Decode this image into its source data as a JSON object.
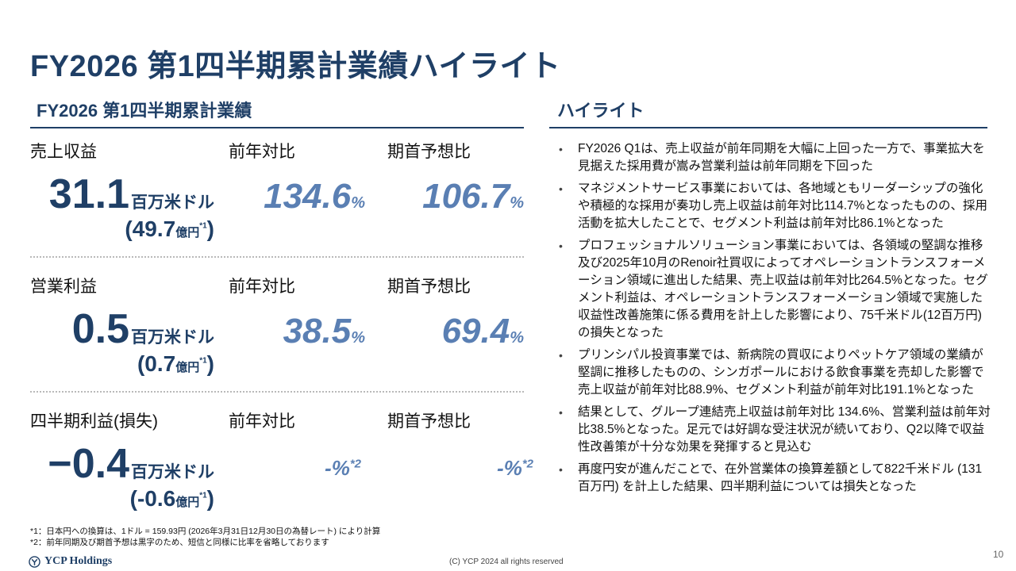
{
  "title": "FY2026 第1四半期累計業績ハイライト",
  "left_section": {
    "heading": "FY2026 第1四半期累計業績"
  },
  "right_section": {
    "heading": "ハイライト"
  },
  "metrics": [
    {
      "label": "売上収益",
      "yoy_label": "前年対比",
      "forecast_label": "期首予想比",
      "value": "31.1",
      "value_unit": "百万米ドル",
      "yen_value": "(49.7",
      "yen_unit": "億円",
      "yen_note": "*1",
      "yen_close": ")",
      "yoy": "134.6",
      "yoy_sym": "%",
      "forecast": "106.7",
      "forecast_sym": "%"
    },
    {
      "label": "営業利益",
      "yoy_label": "前年対比",
      "forecast_label": "期首予想比",
      "value": "0.5",
      "value_unit": "百万米ドル",
      "yen_value": "(0.7",
      "yen_unit": "億円",
      "yen_note": "*1",
      "yen_close": ")",
      "yoy": "38.5",
      "yoy_sym": "%",
      "forecast": "69.4",
      "forecast_sym": "%"
    },
    {
      "label": "四半期利益(損失)",
      "yoy_label": "前年対比",
      "forecast_label": "期首予想比",
      "value": "−0.4",
      "value_unit": "百万米ドル",
      "yen_value": "(-0.6",
      "yen_unit": "億円",
      "yen_note": "*1",
      "yen_close": ")",
      "yoy": "-%",
      "yoy_note": "*2",
      "forecast": "-%",
      "forecast_note": "*2"
    }
  ],
  "highlights": [
    "FY2026 Q1は、売上収益が前年同期を大幅に上回った一方で、事業拡大を見据えた採用費が嵩み営業利益は前年同期を下回った",
    "マネジメントサービス事業においては、各地域ともリーダーシップの強化や積極的な採用が奏功し売上収益は前年対比114.7%となったものの、採用活動を拡大したことで、セグメント利益は前年対比86.1%となった",
    "プロフェッショナルソリューション事業においては、各領域の堅調な推移及び2025年10月のRenoir社買収によってオペレーショントランスフォーメーション領域に進出した結果、売上収益は前年対比264.5%となった。セグメント利益は、オペレーショントランスフォーメーション領域で実施した収益性改善施策に係る費用を計上した影響により、75千米ドル(12百万円)の損失となった",
    "プリンシパル投資事業では、新病院の買収によりペットケア領域の業績が堅調に推移したものの、シンガポールにおける飲食事業を売却した影響で売上収益が前年対比88.9%、セグメント利益が前年対比191.1%となった",
    "結果として、グループ連結売上収益は前年対比 134.6%、営業利益は前年対比38.5%となった。足元では好調な受注状況が続いており、Q2以降で収益性改善策が十分な効果を発揮すると見込む",
    "再度円安が進んだことで、在外営業体の換算差額として822千米ドル (131百万円) を計上した結果、四半期利益については損失となった"
  ],
  "footnotes": [
    "*1：日本円への換算は、1ドル = 159.93円 (2026年3月31日12月30日の為替レート) により計算",
    "*2：前年同期及び期首予想は黒字のため、短信と同様に比率を省略しております"
  ],
  "footer": {
    "logo_text": "YCP Holdings",
    "copyright": "(C) YCP 2024 all rights reserved",
    "page_number": "10"
  },
  "colors": {
    "primary": "#1f3f66",
    "accent": "#5a7fb3",
    "divider": "#b9b9b9"
  }
}
